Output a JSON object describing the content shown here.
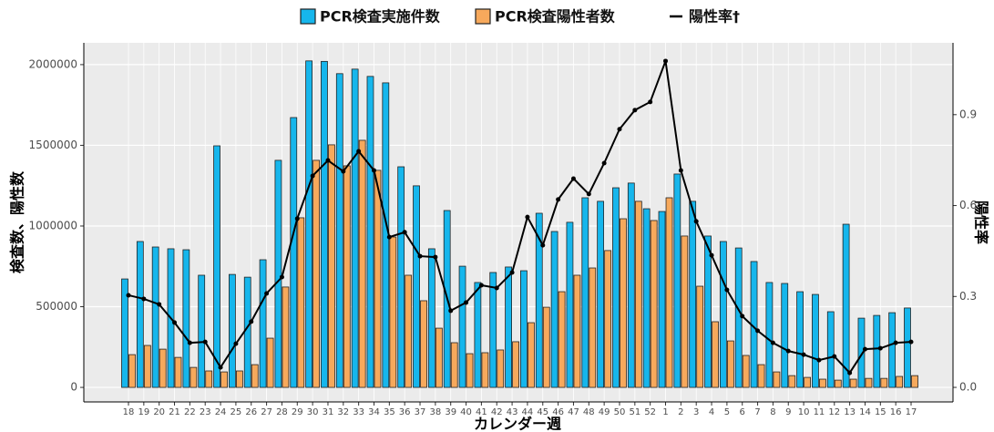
{
  "chart_data": {
    "type": "bar",
    "x_label": "カレンダー週",
    "y_label": "検査数、陽性数",
    "y2_label": "陽性率",
    "categories": [
      "18",
      "19",
      "20",
      "21",
      "22",
      "23",
      "24",
      "25",
      "26",
      "27",
      "28",
      "29",
      "30",
      "31",
      "32",
      "33",
      "34",
      "35",
      "36",
      "37",
      "38",
      "39",
      "40",
      "41",
      "42",
      "43",
      "44",
      "45",
      "46",
      "47",
      "48",
      "49",
      "50",
      "51",
      "52",
      "1",
      "2",
      "3",
      "4",
      "5",
      "6",
      "7",
      "8",
      "9",
      "10",
      "11",
      "12",
      "13",
      "14",
      "15",
      "16",
      "17"
    ],
    "series": [
      {
        "name": "PCR検査実施件数",
        "color": "#16b6ec",
        "values": [
          672000,
          904000,
          870000,
          859000,
          853000,
          695000,
          1497000,
          700000,
          683000,
          791000,
          1407000,
          1672000,
          2023000,
          2020000,
          1944000,
          1972000,
          1927000,
          1887000,
          1367000,
          1249000,
          859000,
          1096000,
          751000,
          650000,
          712000,
          746000,
          723000,
          1079000,
          966000,
          1023000,
          1175000,
          1153000,
          1237000,
          1266000,
          1107000,
          1090000,
          1322000,
          1153000,
          938000,
          904000,
          864000,
          780000,
          650000,
          644000,
          593000,
          576000,
          469000,
          1011000,
          429000,
          446000,
          463000,
          492000
        ]
      },
      {
        "name": "PCR検査陽性者数",
        "color": "#f7a95c",
        "values": [
          203000,
          260000,
          237000,
          186000,
          124000,
          102000,
          96000,
          102000,
          141000,
          305000,
          622000,
          1051000,
          1407000,
          1503000,
          1373000,
          1531000,
          1345000,
          932000,
          695000,
          537000,
          367000,
          277000,
          209000,
          215000,
          232000,
          283000,
          401000,
          497000,
          593000,
          695000,
          740000,
          848000,
          1045000,
          1153000,
          1034000,
          1175000,
          938000,
          627000,
          407000,
          288000,
          198000,
          141000,
          96000,
          73000,
          62000,
          51000,
          45000,
          51000,
          56000,
          56000,
          68000,
          73000
        ]
      },
      {
        "name": "陽性率†",
        "color": "#000000",
        "axis": "y2",
        "type": "line",
        "values": [
          0.304,
          0.292,
          0.274,
          0.214,
          0.147,
          0.15,
          0.066,
          0.144,
          0.217,
          0.31,
          0.364,
          0.557,
          0.698,
          0.749,
          0.713,
          0.779,
          0.716,
          0.496,
          0.512,
          0.433,
          0.43,
          0.253,
          0.28,
          0.337,
          0.328,
          0.379,
          0.562,
          0.469,
          0.62,
          0.689,
          0.638,
          0.74,
          0.852,
          0.915,
          0.942,
          1.077,
          0.716,
          0.548,
          0.436,
          0.322,
          0.235,
          0.187,
          0.147,
          0.12,
          0.108,
          0.09,
          0.102,
          0.048,
          0.126,
          0.129,
          0.147,
          0.15
        ]
      }
    ],
    "ylim": [
      -90000,
      2135000
    ],
    "yticks": [
      0,
      500000,
      1000000,
      1500000,
      2000000
    ],
    "y2lim": [
      -0.048,
      1.137
    ],
    "y2ticks": [
      {
        "value": 0,
        "label": "0.0"
      },
      0.3,
      0.6,
      0.9
    ],
    "grid": true,
    "legend": "top"
  }
}
